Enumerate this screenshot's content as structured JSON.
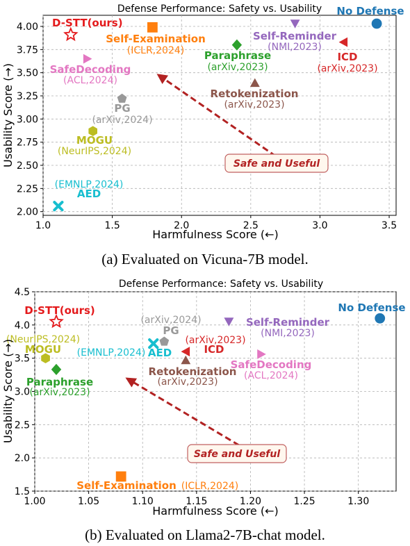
{
  "chart_data": [
    {
      "type": "scatter",
      "title": "Defense Performance: Safety vs. Usability",
      "xlabel": "Harmfulness Score (←)",
      "ylabel": "Usability Score (→)",
      "xlim": [
        1.0,
        3.55
      ],
      "ylim": [
        1.96,
        4.12
      ],
      "xticks": [
        "1.0",
        "1.5",
        "2.0",
        "2.5",
        "3.0",
        "3.5"
      ],
      "xtick_values": [
        1.0,
        1.5,
        2.0,
        2.5,
        3.0,
        3.5
      ],
      "yticks": [
        "2.00",
        "2.25",
        "2.50",
        "2.75",
        "3.00",
        "3.25",
        "3.50",
        "3.75",
        "4.00"
      ],
      "ytick_values": [
        2.0,
        2.25,
        2.5,
        2.75,
        3.0,
        3.25,
        3.5,
        3.75,
        4.0
      ],
      "grid": true,
      "arrow_label": "Safe and Useful",
      "caption": "(a) Evaluated on Vicuna-7B model.",
      "points": [
        {
          "name": "D-STT(ours)",
          "venue": "",
          "x": 1.2,
          "y": 3.91,
          "color": "#e41a1c",
          "marker": "star"
        },
        {
          "name": "Self-Examination",
          "venue": "(ICLR,2024)",
          "x": 1.79,
          "y": 3.99,
          "color": "#ff7f0e",
          "marker": "square"
        },
        {
          "name": "No Defense",
          "venue": "",
          "x": 3.41,
          "y": 4.03,
          "color": "#1f77b4",
          "marker": "circle"
        },
        {
          "name": "Self-Reminder",
          "venue": "(NMI,2023)",
          "x": 2.82,
          "y": 4.03,
          "color": "#9467bd",
          "marker": "triangle-down"
        },
        {
          "name": "ICD",
          "venue": "(arXiv,2023)",
          "x": 3.17,
          "y": 3.83,
          "color": "#d62728",
          "marker": "triangle-left"
        },
        {
          "name": "Paraphrase",
          "venue": "(arXiv,2023)",
          "x": 2.4,
          "y": 3.8,
          "color": "#2ca02c",
          "marker": "diamond"
        },
        {
          "name": "SafeDecoding",
          "venue": "(ACL,2024)",
          "x": 1.32,
          "y": 3.65,
          "color": "#e377c2",
          "marker": "triangle-right"
        },
        {
          "name": "Retokenization",
          "venue": "(arXiv,2023)",
          "x": 2.53,
          "y": 3.39,
          "color": "#8c564b",
          "marker": "triangle-up"
        },
        {
          "name": "PG",
          "venue": "(arXiv,2024)",
          "x": 1.57,
          "y": 3.22,
          "color": "#999999",
          "marker": "pentagon"
        },
        {
          "name": "MOGU",
          "venue": "(NeurIPS,2024)",
          "x": 1.36,
          "y": 2.87,
          "color": "#bcbd22",
          "marker": "hexagon"
        },
        {
          "name": "AED",
          "venue": "(EMNLP,2024)",
          "x": 1.11,
          "y": 2.06,
          "color": "#17becf",
          "marker": "x"
        }
      ]
    },
    {
      "type": "scatter",
      "title": "Defense Performance: Safety vs. Usability",
      "xlabel": "Harmfulness Score (←)",
      "ylabel": "Usability Score (→)",
      "xlim": [
        1.0,
        1.335
      ],
      "ylim": [
        1.5,
        4.5
      ],
      "xticks": [
        "1.00",
        "1.05",
        "1.10",
        "1.15",
        "1.20",
        "1.25",
        "1.30"
      ],
      "xtick_values": [
        1.0,
        1.05,
        1.1,
        1.15,
        1.2,
        1.25,
        1.3
      ],
      "yticks": [
        "1.5",
        "2.0",
        "2.5",
        "3.0",
        "3.5",
        "4.0",
        "4.5"
      ],
      "ytick_values": [
        1.5,
        2.0,
        2.5,
        3.0,
        3.5,
        4.0,
        4.5
      ],
      "grid": true,
      "arrow_label": "Safe and Useful",
      "caption": "(b) Evaluated on Llama2-7B-chat model.",
      "points": [
        {
          "name": "D-STT(ours)",
          "venue": "",
          "x": 1.02,
          "y": 4.05,
          "color": "#e41a1c",
          "marker": "star"
        },
        {
          "name": "MOGU",
          "venue": "(NeurIPS,2024)",
          "x": 1.01,
          "y": 3.5,
          "color": "#bcbd22",
          "marker": "hexagon"
        },
        {
          "name": "Paraphrase",
          "venue": "(arXiv,2023)",
          "x": 1.02,
          "y": 3.33,
          "color": "#2ca02c",
          "marker": "diamond"
        },
        {
          "name": "PG",
          "venue": "(arXiv,2024)",
          "x": 1.12,
          "y": 3.75,
          "color": "#999999",
          "marker": "pentagon"
        },
        {
          "name": "AED",
          "venue": "(EMNLP,2024)",
          "x": 1.11,
          "y": 3.72,
          "color": "#17becf",
          "marker": "x"
        },
        {
          "name": "ICD",
          "venue": "(arXiv,2023)",
          "x": 1.14,
          "y": 3.6,
          "color": "#d62728",
          "marker": "triangle-left"
        },
        {
          "name": "Retokenization",
          "venue": "(arXiv,2023)",
          "x": 1.14,
          "y": 3.47,
          "color": "#8c564b",
          "marker": "triangle-up"
        },
        {
          "name": "Self-Reminder",
          "venue": "(NMI,2023)",
          "x": 1.18,
          "y": 4.05,
          "color": "#9467bd",
          "marker": "triangle-down"
        },
        {
          "name": "SafeDecoding",
          "venue": "(ACL,2024)",
          "x": 1.21,
          "y": 3.56,
          "color": "#e377c2",
          "marker": "triangle-right"
        },
        {
          "name": "No Defense",
          "venue": "",
          "x": 1.32,
          "y": 4.1,
          "color": "#1f77b4",
          "marker": "circle"
        },
        {
          "name": "Self-Examination",
          "venue": "(ICLR,2024)",
          "x": 1.08,
          "y": 1.72,
          "color": "#ff7f0e",
          "marker": "square"
        }
      ]
    }
  ]
}
